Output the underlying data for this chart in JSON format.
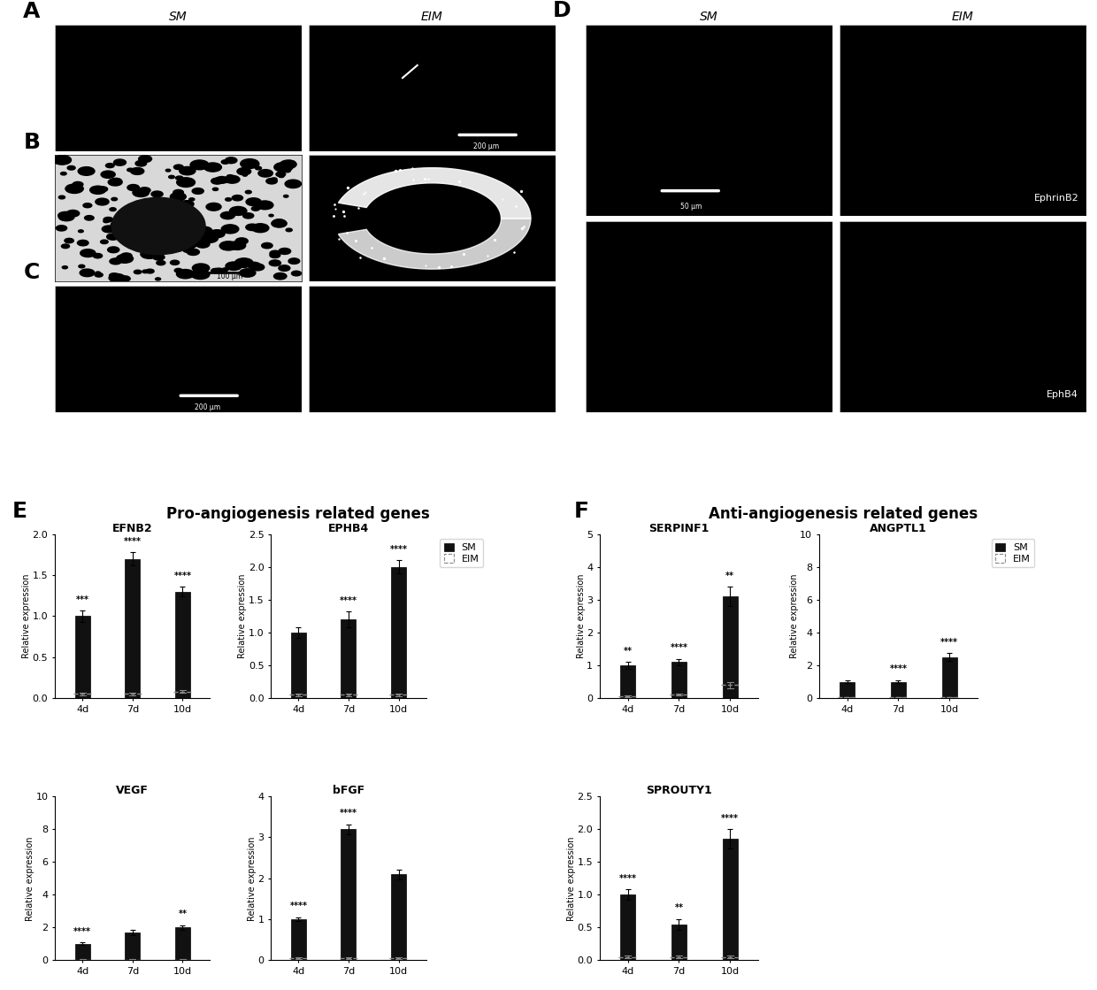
{
  "panel_E_title": "Pro-angiogenesis related genes",
  "panel_F_title": "Anti-angiogenesis related genes",
  "ephrinB2_label": "EphrinB2",
  "ephB4_label": "EphB4",
  "scalebar_A": "200 μm",
  "scalebar_C": "200 μm",
  "scalebar_D": "50 μm",
  "categories": [
    "4d",
    "7d",
    "10d"
  ],
  "EFNB2": {
    "title": "EFNB2",
    "SM": [
      1.0,
      1.7,
      1.3
    ],
    "SM_err": [
      0.07,
      0.08,
      0.06
    ],
    "EIM": [
      0.05,
      0.05,
      0.08
    ],
    "EIM_err": [
      0.02,
      0.02,
      0.02
    ],
    "ylim": [
      0,
      2.0
    ],
    "yticks": [
      0.0,
      0.5,
      1.0,
      1.5,
      2.0
    ],
    "sig": [
      "***",
      "****",
      "****"
    ]
  },
  "EPHB4": {
    "title": "EPHB4",
    "SM": [
      1.0,
      1.2,
      2.0
    ],
    "SM_err": [
      0.08,
      0.12,
      0.1
    ],
    "EIM": [
      0.05,
      0.05,
      0.05
    ],
    "EIM_err": [
      0.02,
      0.02,
      0.02
    ],
    "ylim": [
      0,
      2.5
    ],
    "yticks": [
      0.0,
      0.5,
      1.0,
      1.5,
      2.0,
      2.5
    ],
    "sig": [
      "",
      "****",
      "****"
    ]
  },
  "VEGF": {
    "title": "VEGF",
    "SM": [
      1.0,
      1.7,
      2.0
    ],
    "SM_err": [
      0.08,
      0.15,
      0.15
    ],
    "EIM": [
      0.05,
      0.05,
      0.05
    ],
    "EIM_err": [
      0.02,
      0.02,
      0.02
    ],
    "ylim": [
      0,
      10
    ],
    "yticks": [
      0,
      2,
      4,
      6,
      8,
      10
    ],
    "sig_pos": [
      "SM",
      "SM",
      "SM"
    ],
    "sig": [
      "****",
      "",
      "**"
    ]
  },
  "bFGF": {
    "title": "bFGF",
    "SM": [
      1.0,
      3.2,
      2.1
    ],
    "SM_err": [
      0.05,
      0.12,
      0.12
    ],
    "EIM": [
      0.05,
      0.05,
      0.05
    ],
    "EIM_err": [
      0.02,
      0.02,
      0.02
    ],
    "ylim": [
      0,
      4
    ],
    "yticks": [
      0,
      1,
      2,
      3,
      4
    ],
    "sig": [
      "****",
      "****",
      ""
    ]
  },
  "SERPINF1": {
    "title": "SERPINF1",
    "SM": [
      1.0,
      1.1,
      3.1
    ],
    "SM_err": [
      0.1,
      0.1,
      0.3
    ],
    "EIM": [
      0.05,
      0.1,
      0.4
    ],
    "EIM_err": [
      0.02,
      0.03,
      0.1
    ],
    "ylim": [
      0,
      5
    ],
    "yticks": [
      0,
      1,
      2,
      3,
      4,
      5
    ],
    "sig": [
      "**",
      "****",
      "**"
    ]
  },
  "ANGPTL1": {
    "title": "ANGPTL1",
    "SM": [
      1.0,
      1.0,
      2.5
    ],
    "SM_err": [
      0.1,
      0.1,
      0.25
    ],
    "EIM": [
      0.05,
      0.05,
      0.05
    ],
    "EIM_err": [
      0.02,
      0.02,
      0.02
    ],
    "ylim": [
      0,
      10
    ],
    "yticks": [
      0,
      2,
      4,
      6,
      8,
      10
    ],
    "sig": [
      "",
      "****",
      "****"
    ]
  },
  "SPROUTY1": {
    "title": "SPROUTY1",
    "SM": [
      1.0,
      0.55,
      1.85
    ],
    "SM_err": [
      0.08,
      0.08,
      0.15
    ],
    "EIM": [
      0.05,
      0.05,
      0.05
    ],
    "EIM_err": [
      0.02,
      0.02,
      0.02
    ],
    "ylim": [
      0,
      2.5
    ],
    "yticks": [
      0.0,
      0.5,
      1.0,
      1.5,
      2.0,
      2.5
    ],
    "sig": [
      "****",
      "**",
      "****"
    ]
  },
  "bar_color_SM": "#111111",
  "font_title_size": 9,
  "font_label_size": 7,
  "font_tick_size": 8,
  "font_sig_size": 7,
  "legend_SM": "SM",
  "legend_EIM": "EIM"
}
